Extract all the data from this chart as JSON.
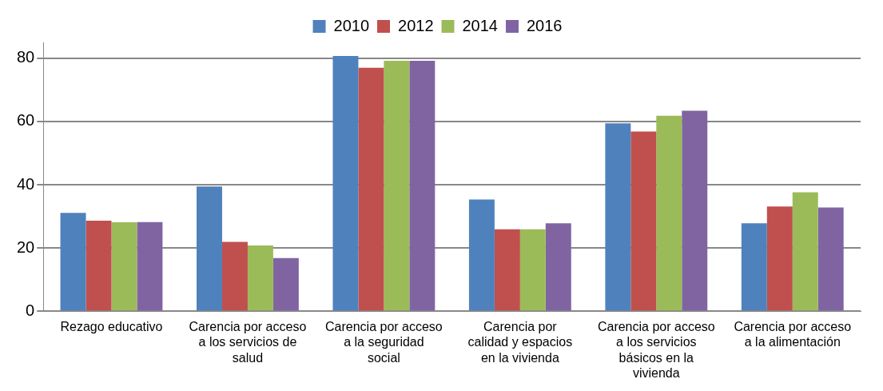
{
  "chart_data": {
    "type": "bar",
    "categories": [
      "Rezago educativo",
      "Carencia por acceso a los servicios de salud",
      "Carencia por acceso a la seguridad social",
      "Carencia por calidad y espacios en la vivienda",
      "Carencia por acceso a los servicios básicos en la vivienda",
      "Carencia por acceso a la alimentación"
    ],
    "series": [
      {
        "name": "2010",
        "color": "#4f81bd",
        "values": [
          31.1,
          39.4,
          80.7,
          35.3,
          59.4,
          27.8
        ]
      },
      {
        "name": "2012",
        "color": "#c0504d",
        "values": [
          28.6,
          21.9,
          77.0,
          25.9,
          56.8,
          33.1
        ]
      },
      {
        "name": "2014",
        "color": "#9bbb59",
        "values": [
          28.1,
          20.8,
          79.2,
          25.9,
          61.8,
          37.6
        ]
      },
      {
        "name": "2016",
        "color": "#8064a2",
        "values": [
          28.2,
          16.8,
          79.2,
          27.8,
          63.4,
          32.8
        ]
      }
    ],
    "ylim": [
      0,
      85
    ],
    "yticks": [
      0,
      20,
      40,
      60,
      80
    ],
    "grid": "y",
    "legend": "top"
  }
}
